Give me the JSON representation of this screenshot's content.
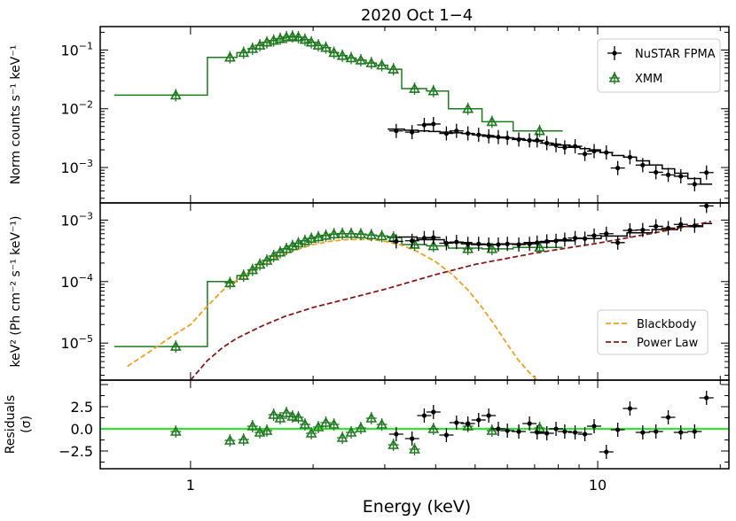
{
  "title": "2020 Oct 1−4",
  "xlabel": "Energy (keV)",
  "colors": {
    "nustar": "#000000",
    "xmm": "#1e7a1e",
    "blackbody": "#f0a020",
    "powerlaw": "#8b1a1a",
    "zero_line": "#22ee22"
  },
  "chart_data": [
    {
      "type": "scatter",
      "panel": "counts",
      "xscale": "log",
      "yscale": "log",
      "xlim": [
        0.6,
        21
      ],
      "ylim": [
        0.00025,
        0.25
      ],
      "ylabel": "Norm counts s⁻¹ keV⁻¹",
      "yticks": [
        {
          "v": 0.001,
          "base": "10",
          "exp": "−3"
        },
        {
          "v": 0.01,
          "base": "10",
          "exp": "−2"
        },
        {
          "v": 0.1,
          "base": "10",
          "exp": "−1"
        }
      ],
      "legend": {
        "position": "top-right",
        "entries": [
          "NuSTAR FPMA",
          "XMM"
        ]
      },
      "series": [
        {
          "name": "XMM",
          "marker": "triangle",
          "x": [
            0.92,
            1.25,
            1.35,
            1.42,
            1.48,
            1.54,
            1.6,
            1.66,
            1.72,
            1.78,
            1.84,
            1.91,
            1.98,
            2.06,
            2.15,
            2.25,
            2.36,
            2.48,
            2.62,
            2.78,
            2.95,
            3.15,
            3.55,
            3.95,
            4.8,
            5.5,
            7.2
          ],
          "y": [
            0.017,
            0.075,
            0.09,
            0.105,
            0.12,
            0.135,
            0.145,
            0.155,
            0.165,
            0.17,
            0.165,
            0.15,
            0.135,
            0.12,
            0.11,
            0.09,
            0.08,
            0.073,
            0.067,
            0.06,
            0.055,
            0.047,
            0.022,
            0.02,
            0.01,
            0.006,
            0.0042
          ]
        },
        {
          "name": "NuSTAR FPMA",
          "marker": "plus",
          "x": [
            3.2,
            3.5,
            3.75,
            3.95,
            4.25,
            4.5,
            4.8,
            5.1,
            5.4,
            5.7,
            6.0,
            6.4,
            6.8,
            7.1,
            7.5,
            7.9,
            8.3,
            8.8,
            9.3,
            9.8,
            10.5,
            11.2,
            12.0,
            12.9,
            13.9,
            14.9,
            16.0,
            17.3,
            18.5
          ],
          "y": [
            0.0042,
            0.004,
            0.0053,
            0.0055,
            0.0038,
            0.0042,
            0.0038,
            0.0036,
            0.0034,
            0.0033,
            0.0032,
            0.003,
            0.0029,
            0.0029,
            0.0026,
            0.0024,
            0.0022,
            0.0023,
            0.0017,
            0.0019,
            0.0018,
            0.00098,
            0.0015,
            0.0011,
            0.00083,
            0.00075,
            0.00071,
            0.00052,
            0.00082
          ]
        }
      ],
      "model_steps": [
        {
          "name": "XMM model",
          "edges": [
            0.65,
            1.1,
            1.3,
            1.39,
            1.45,
            1.51,
            1.57,
            1.63,
            1.69,
            1.75,
            1.81,
            1.87,
            1.94,
            2.02,
            2.1,
            2.2,
            2.3,
            2.42,
            2.55,
            2.7,
            2.86,
            3.05,
            3.3,
            3.8,
            4.3,
            5.2,
            6.2,
            8.2
          ],
          "y": [
            0.017,
            0.075,
            0.09,
            0.105,
            0.12,
            0.135,
            0.145,
            0.155,
            0.165,
            0.17,
            0.165,
            0.15,
            0.135,
            0.12,
            0.11,
            0.09,
            0.08,
            0.073,
            0.067,
            0.06,
            0.055,
            0.047,
            0.022,
            0.02,
            0.01,
            0.006,
            0.0042
          ]
        },
        {
          "name": "NuSTAR model",
          "edges": [
            3.05,
            3.35,
            3.62,
            3.85,
            4.1,
            4.37,
            4.65,
            4.95,
            5.25,
            5.55,
            5.85,
            6.2,
            6.6,
            6.95,
            7.3,
            7.7,
            8.1,
            8.55,
            9.05,
            9.55,
            10.15,
            10.85,
            11.6,
            12.45,
            13.4,
            14.4,
            15.45,
            16.65,
            17.9,
            19.1
          ],
          "y": [
            0.0045,
            0.0043,
            0.0042,
            0.0041,
            0.004,
            0.0039,
            0.0038,
            0.0036,
            0.0035,
            0.0033,
            0.0032,
            0.0031,
            0.0029,
            0.0028,
            0.0026,
            0.0025,
            0.0024,
            0.0022,
            0.0021,
            0.002,
            0.0018,
            0.0016,
            0.0015,
            0.0013,
            0.0011,
            0.00095,
            0.0008,
            0.00065,
            0.00052
          ]
        }
      ]
    },
    {
      "type": "line",
      "panel": "unfolded",
      "xscale": "log",
      "yscale": "log",
      "xlim": [
        0.6,
        21
      ],
      "ylim": [
        2.5e-06,
        0.0019
      ],
      "ylabel": "keV² (Ph cm⁻² s⁻¹ keV⁻¹)",
      "yticks": [
        {
          "v": 1e-05,
          "base": "10",
          "exp": "−5"
        },
        {
          "v": 0.0001,
          "base": "10",
          "exp": "−4"
        },
        {
          "v": 0.001,
          "base": "10",
          "exp": "−3"
        }
      ],
      "legend": {
        "position": "bottom-right",
        "entries": [
          "Blackbody",
          "Power Law"
        ]
      },
      "series": [
        {
          "name": "XMM",
          "marker": "triangle",
          "x": [
            0.92,
            1.25,
            1.35,
            1.42,
            1.48,
            1.54,
            1.6,
            1.66,
            1.72,
            1.78,
            1.84,
            1.91,
            1.98,
            2.06,
            2.15,
            2.25,
            2.36,
            2.48,
            2.62,
            2.78,
            2.95,
            3.15,
            3.55,
            3.95,
            4.8,
            5.5,
            7.2
          ],
          "y": [
            8.8e-06,
            9.5e-05,
            0.000125,
            0.000155,
            0.00019,
            0.00022,
            0.00026,
            0.0003,
            0.00034,
            0.00038,
            0.00042,
            0.00046,
            0.0005,
            0.00053,
            0.00056,
            0.00059,
            0.0006,
            0.0006,
            0.00059,
            0.00057,
            0.00055,
            0.00052,
            0.0004,
            0.00038,
            0.00034,
            0.00034,
            0.00036
          ]
        },
        {
          "name": "NuSTAR FPMA",
          "marker": "plus",
          "x": [
            3.2,
            3.5,
            3.75,
            3.95,
            4.25,
            4.5,
            4.8,
            5.1,
            5.4,
            5.7,
            6.0,
            6.4,
            6.8,
            7.1,
            7.5,
            7.9,
            8.3,
            8.8,
            9.3,
            9.8,
            10.5,
            11.2,
            12.0,
            12.9,
            13.9,
            14.9,
            16.0,
            17.3,
            18.5
          ],
          "y": [
            0.00045,
            0.00046,
            0.00051,
            0.00052,
            0.00042,
            0.00044,
            0.00041,
            0.00041,
            0.0004,
            0.0004,
            0.00041,
            0.0004,
            0.00041,
            0.00043,
            0.00045,
            0.00046,
            0.00048,
            0.00051,
            0.0005,
            0.00056,
            0.0006,
            0.00043,
            0.00068,
            0.00069,
            0.00079,
            0.00074,
            0.00085,
            0.00081,
            0.0017
          ]
        }
      ],
      "model_steps": [
        {
          "name": "XMM model",
          "edges": [
            0.65,
            1.1,
            1.3,
            1.39,
            1.45,
            1.51,
            1.57,
            1.63,
            1.69,
            1.75,
            1.81,
            1.87,
            1.94,
            2.02,
            2.1,
            2.2,
            2.3,
            2.42,
            2.55,
            2.7,
            2.86,
            3.05,
            3.3,
            3.8,
            4.3,
            5.2,
            6.2,
            8.2
          ],
          "y": [
            8.8e-06,
            0.0001,
            0.000125,
            0.000155,
            0.00019,
            0.00022,
            0.00026,
            0.0003,
            0.00034,
            0.00038,
            0.00042,
            0.00046,
            0.0005,
            0.00053,
            0.00056,
            0.00059,
            0.0006,
            0.0006,
            0.00059,
            0.00057,
            0.00055,
            0.00052,
            0.0004,
            0.00038,
            0.00035,
            0.00034,
            0.00036
          ]
        },
        {
          "name": "NuSTAR model",
          "edges": [
            3.05,
            3.6,
            4.2,
            4.9,
            5.7,
            6.6,
            7.6,
            8.8,
            10.2,
            11.8,
            13.6,
            15.7,
            18.1,
            19.1
          ],
          "y": [
            0.00053,
            0.00048,
            0.00043,
            0.0004,
            0.00041,
            0.00043,
            0.00046,
            0.0005,
            0.00055,
            0.00062,
            0.0007,
            0.00078,
            0.00088
          ]
        }
      ],
      "model_curves": [
        {
          "name": "Blackbody",
          "style": "dashed",
          "x": [
            0.7,
            0.8,
            0.9,
            1.0,
            1.1,
            1.2,
            1.3,
            1.4,
            1.5,
            1.6,
            1.8,
            2.0,
            2.2,
            2.4,
            2.6,
            2.8,
            3.0,
            3.3,
            3.6,
            4.0,
            4.4,
            4.8,
            5.2,
            5.6,
            6.0,
            6.4,
            6.8,
            7.1
          ],
          "y": [
            4.2e-06,
            7.5e-06,
            1.3e-05,
            2e-05,
            4e-05,
            7.2e-05,
            0.000105,
            0.000145,
            0.00019,
            0.000235,
            0.00032,
            0.0004,
            0.00045,
            0.00048,
            0.000485,
            0.00048,
            0.00045,
            0.00039,
            0.00031,
            0.00021,
            0.00013,
            7.3e-05,
            3.8e-05,
            1.9e-05,
            9.5e-06,
            5.2e-06,
            3.3e-06,
            2.5e-06
          ]
        },
        {
          "name": "Power Law",
          "style": "dashed",
          "x": [
            1.0,
            1.1,
            1.2,
            1.3,
            1.5,
            1.7,
            2.0,
            2.5,
            3.0,
            4.0,
            5.0,
            7.0,
            10.0,
            14.0,
            19.0
          ],
          "y": [
            2.5e-06,
            5.2e-06,
            8.5e-06,
            1.2e-05,
            1.9e-05,
            2.7e-05,
            3.8e-05,
            5.5e-05,
            7.5e-05,
            0.00013,
            0.00019,
            0.00029,
            0.00042,
            0.00063,
            0.00095
          ]
        }
      ]
    },
    {
      "type": "scatter",
      "panel": "residuals",
      "xscale": "log",
      "yscale": "linear",
      "xlim": [
        0.6,
        21
      ],
      "ylim": [
        -4.5,
        5.5
      ],
      "ylabel": [
        "Residuals",
        "(σ)"
      ],
      "yticks": [
        {
          "v": -2.5,
          "label": "−2.5"
        },
        {
          "v": 0,
          "label": "0.0"
        },
        {
          "v": 2.5,
          "label": "2.5"
        }
      ],
      "series": [
        {
          "name": "XMM",
          "marker": "triangle",
          "x": [
            0.92,
            1.25,
            1.35,
            1.42,
            1.48,
            1.54,
            1.6,
            1.66,
            1.72,
            1.78,
            1.84,
            1.91,
            1.98,
            2.06,
            2.15,
            2.25,
            2.36,
            2.48,
            2.62,
            2.78,
            2.95,
            3.15,
            3.55,
            3.95,
            4.8,
            5.5,
            7.2
          ],
          "y": [
            -0.3,
            -1.3,
            -1.2,
            0.3,
            -0.4,
            -0.2,
            1.6,
            1.2,
            1.8,
            1.4,
            1.3,
            0.5,
            -0.5,
            0.2,
            0.7,
            0.5,
            -1.0,
            -0.4,
            0.1,
            1.2,
            0.5,
            -1.8,
            -2.3,
            0.0,
            0.3,
            -0.2,
            0.1
          ]
        },
        {
          "name": "NuSTAR FPMA",
          "marker": "plus",
          "x": [
            3.2,
            3.5,
            3.75,
            3.95,
            4.25,
            4.5,
            4.8,
            5.1,
            5.4,
            5.7,
            6.0,
            6.4,
            6.8,
            7.1,
            7.5,
            7.9,
            8.3,
            8.8,
            9.3,
            9.8,
            10.5,
            11.2,
            12.0,
            12.9,
            13.9,
            14.9,
            16.0,
            17.3,
            18.5
          ],
          "y": [
            -0.6,
            -1.1,
            1.5,
            1.9,
            -0.7,
            0.7,
            0.6,
            1.0,
            1.5,
            0.0,
            -0.2,
            -0.3,
            0.6,
            -0.4,
            -0.5,
            0.0,
            -0.3,
            -0.4,
            -0.6,
            0.3,
            -2.6,
            -0.1,
            2.3,
            -0.4,
            -0.3,
            1.3,
            -0.4,
            -0.3,
            3.5
          ]
        }
      ]
    }
  ]
}
